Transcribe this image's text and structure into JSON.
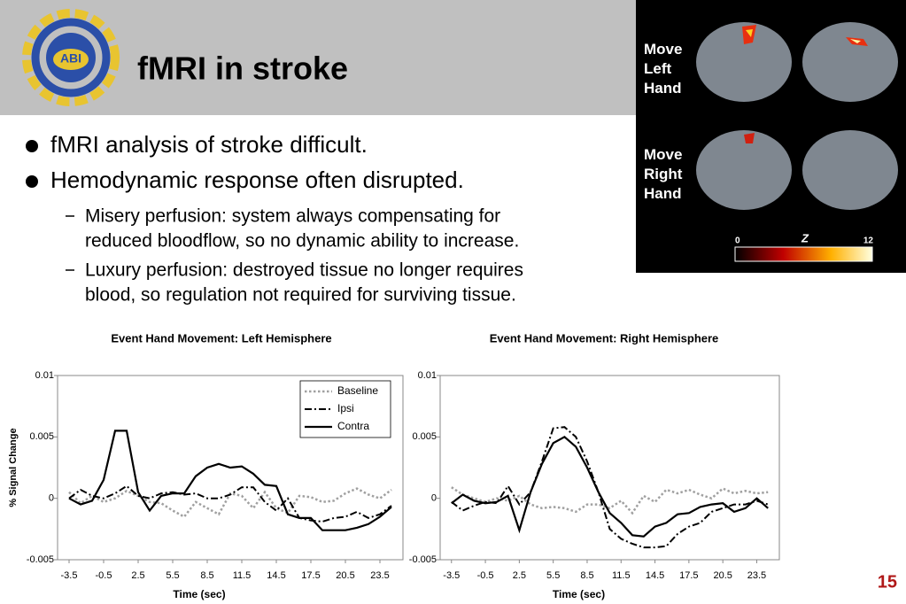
{
  "header": {
    "title": "fMRI in stroke",
    "logo_text": "ABI"
  },
  "bullets": [
    {
      "text": "fMRI analysis of stroke difficult."
    },
    {
      "text": "Hemodynamic response often disrupted.",
      "sub": [
        [
          "Misery perfusion: system always compensating for",
          "reduced bloodflow, so no dynamic ability to increase."
        ],
        [
          "Luxury perfusion: destroyed tissue no longer requires",
          "blood, so regulation not required for surviving tissue."
        ]
      ]
    }
  ],
  "figure": {
    "rows": [
      "Move Left Hand",
      "Move Right Hand"
    ],
    "colorbar": {
      "min": "0",
      "label": "Z",
      "max": "12"
    }
  },
  "page_number": "15",
  "chart_data": [
    {
      "type": "line",
      "title": "Event Hand Movement: Left Hemisphere",
      "xlabel": "Time (sec)",
      "ylabel": "% Signal Change",
      "xlim": [
        -4.5,
        25.5
      ],
      "ylim": [
        -0.005,
        0.01
      ],
      "xticks": [
        -3.5,
        -0.5,
        2.5,
        5.5,
        8.5,
        11.5,
        14.5,
        17.5,
        20.5,
        23.5
      ],
      "yticks": [
        0.01,
        0.005,
        0,
        -0.005
      ],
      "legend": "upper right",
      "x": [
        -3.5,
        -2.5,
        -1.5,
        -0.5,
        0.5,
        1.5,
        2.5,
        3.5,
        4.5,
        5.5,
        6.5,
        7.5,
        8.5,
        9.5,
        10.5,
        11.5,
        12.5,
        13.5,
        14.5,
        15.5,
        16.5,
        17.5,
        18.5,
        19.5,
        20.5,
        21.5,
        22.5,
        23.5,
        24.5
      ],
      "series": [
        {
          "name": "Baseline",
          "color": "#a0a0a0",
          "dash": "dotted",
          "values": [
            0.0005,
            -0.0004,
            0.0002,
            -0.0003,
            0,
            0.0006,
            0.0002,
            -0.0003,
            -0.0004,
            -0.001,
            -0.0015,
            -0.0003,
            -0.0008,
            -0.0013,
            0.0004,
            0.0002,
            -0.0008,
            0.0005,
            -0.0008,
            -0.0012,
            0.0002,
            0.0001,
            -0.0003,
            -0.0002,
            0.0004,
            0.0008,
            0.0003,
            0,
            0.0007
          ]
        },
        {
          "name": "Ipsi",
          "color": "#000000",
          "dash": "dashdot",
          "values": [
            0,
            0.0007,
            0.0002,
            0,
            0.0004,
            0.001,
            0.0002,
            0,
            0.0004,
            0.0005,
            0.0003,
            0.0004,
            0,
            0,
            0.0003,
            0.0009,
            0.0009,
            -0.0003,
            -0.001,
            0,
            -0.0016,
            -0.0018,
            -0.0019,
            -0.0016,
            -0.0015,
            -0.0011,
            -0.0016,
            -0.0013,
            -0.0006
          ]
        },
        {
          "name": "Contra",
          "color": "#000000",
          "dash": "solid",
          "values": [
            0,
            -0.0005,
            -0.0002,
            0.0015,
            0.0055,
            0.0055,
            0.0005,
            -0.001,
            0.0002,
            0.0004,
            0.0004,
            0.0018,
            0.0025,
            0.0028,
            0.0025,
            0.0026,
            0.002,
            0.0011,
            0.001,
            -0.0013,
            -0.0016,
            -0.0016,
            -0.0026,
            -0.0026,
            -0.0026,
            -0.0024,
            -0.0021,
            -0.0015,
            -0.0007
          ]
        }
      ]
    },
    {
      "type": "line",
      "title": "Event Hand Movement: Right Hemisphere",
      "xlabel": "Time (sec)",
      "xlim": [
        -4.5,
        25.5
      ],
      "ylim": [
        -0.005,
        0.01
      ],
      "xticks": [
        -3.5,
        -0.5,
        2.5,
        5.5,
        8.5,
        11.5,
        14.5,
        17.5,
        20.5,
        23.5
      ],
      "yticks": [
        0.01,
        0.005,
        0,
        -0.005
      ],
      "x": [
        -3.5,
        -2.5,
        -1.5,
        -0.5,
        0.5,
        1.5,
        2.5,
        3.5,
        4.5,
        5.5,
        6.5,
        7.5,
        8.5,
        9.5,
        10.5,
        11.5,
        12.5,
        13.5,
        14.5,
        15.5,
        16.5,
        17.5,
        18.5,
        19.5,
        20.5,
        21.5,
        22.5,
        23.5,
        24.5
      ],
      "series": [
        {
          "color": "#a0a0a0",
          "dash": "dotted",
          "values": [
            0.0009,
            0.0003,
            0,
            -0.0003,
            0,
            -0.0002,
            0.0002,
            -0.0005,
            -0.0008,
            -0.0007,
            -0.0008,
            -0.0011,
            -0.0005,
            -0.0005,
            -0.0008,
            -0.0002,
            -0.0012,
            0.0002,
            -0.0003,
            0.0007,
            0.0004,
            0.0007,
            0.0003,
            0,
            0.0008,
            0.0004,
            0.0006,
            0.0004,
            0.0005
          ]
        },
        {
          "color": "#000000",
          "dash": "dashdot",
          "values": [
            -0.0003,
            -0.001,
            -0.0006,
            -0.0003,
            -0.0004,
            0.001,
            -0.0005,
            0.0005,
            0.003,
            0.0057,
            0.0058,
            0.005,
            0.003,
            0.0005,
            -0.0025,
            -0.0033,
            -0.0037,
            -0.004,
            -0.004,
            -0.0039,
            -0.0029,
            -0.0023,
            -0.002,
            -0.0011,
            -0.0008,
            -0.0005,
            -0.0005,
            -0.0002,
            -0.0005
          ]
        },
        {
          "color": "#000000",
          "dash": "solid",
          "values": [
            -0.0004,
            0.0003,
            -0.0002,
            -0.0004,
            -0.0003,
            0.0002,
            -0.0026,
            0.0005,
            0.0028,
            0.0045,
            0.005,
            0.0042,
            0.0025,
            0.0005,
            -0.0012,
            -0.002,
            -0.003,
            -0.0031,
            -0.0023,
            -0.002,
            -0.0013,
            -0.0012,
            -0.0007,
            -0.0005,
            -0.0004,
            -0.0011,
            -0.0008,
            0,
            -0.0008
          ]
        }
      ]
    }
  ]
}
